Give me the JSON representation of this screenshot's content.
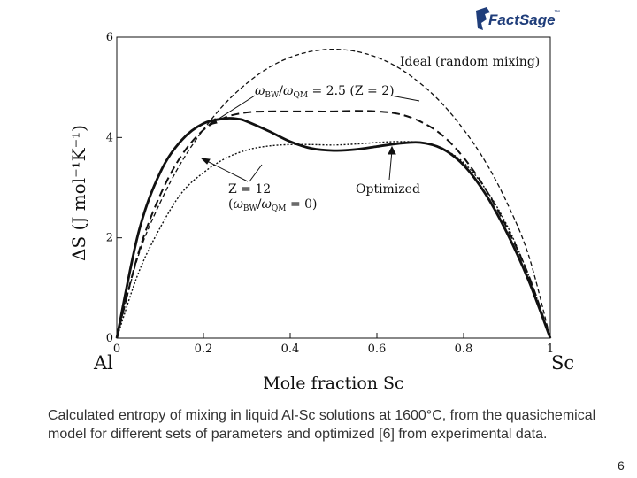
{
  "logo": {
    "text": "FactSage",
    "tm": "™",
    "color": "#1f3d7a"
  },
  "chart_data": {
    "type": "line",
    "ylabel": "ΔS (J mol⁻¹K⁻¹)",
    "xlabel": "Mole fraction Sc",
    "x_left_label": "Al",
    "x_right_label": "Sc",
    "xlim": [
      0,
      1
    ],
    "ylim": [
      0,
      6
    ],
    "x_ticks": [
      0,
      0.2,
      0.4,
      0.6,
      0.8,
      1
    ],
    "x_tick_labels": [
      "0",
      "0.2",
      "0.4",
      "0.6",
      "0.8",
      "1"
    ],
    "y_ticks": [
      0,
      2,
      4,
      6
    ],
    "y_tick_labels": [
      "0",
      "2",
      "4",
      "6"
    ],
    "series": [
      {
        "name": "Ideal (random mixing)",
        "style": "dashed-fine",
        "x": [
          0,
          0.05,
          0.1,
          0.15,
          0.2,
          0.25,
          0.3,
          0.35,
          0.4,
          0.45,
          0.5,
          0.55,
          0.6,
          0.65,
          0.7,
          0.75,
          0.8,
          0.85,
          0.9,
          0.95,
          1
        ],
        "y": [
          0,
          1.65,
          2.7,
          3.52,
          4.16,
          4.68,
          5.08,
          5.39,
          5.6,
          5.72,
          5.76,
          5.72,
          5.6,
          5.39,
          5.08,
          4.68,
          4.16,
          3.52,
          2.7,
          1.65,
          0
        ]
      },
      {
        "name": "ωBW/ωQM = 2.5 (Z = 2)",
        "style": "dashed",
        "x": [
          0,
          0.05,
          0.1,
          0.15,
          0.2,
          0.25,
          0.3,
          0.35,
          0.4,
          0.45,
          0.5,
          0.55,
          0.6,
          0.65,
          0.7,
          0.75,
          0.8,
          0.85,
          0.9,
          0.95,
          1
        ],
        "y": [
          0,
          1.7,
          2.85,
          3.65,
          4.15,
          4.4,
          4.5,
          4.52,
          4.52,
          4.52,
          4.52,
          4.53,
          4.52,
          4.47,
          4.32,
          4.05,
          3.6,
          2.98,
          2.2,
          1.25,
          0
        ]
      },
      {
        "name": "Z = 12 (ωBW/ωQM = 0)",
        "style": "dotted",
        "x": [
          0,
          0.05,
          0.1,
          0.15,
          0.2,
          0.25,
          0.3,
          0.35,
          0.4,
          0.45,
          0.5,
          0.55,
          0.6,
          0.65,
          0.7,
          0.75,
          0.8,
          0.85,
          0.9,
          0.95,
          1
        ],
        "y": [
          0,
          1.3,
          2.2,
          2.9,
          3.3,
          3.58,
          3.75,
          3.83,
          3.86,
          3.86,
          3.85,
          3.87,
          3.9,
          3.92,
          3.9,
          3.78,
          3.5,
          2.98,
          2.25,
          1.25,
          0
        ]
      },
      {
        "name": "Optimized",
        "style": "solid-thick",
        "x": [
          0,
          0.05,
          0.1,
          0.15,
          0.2,
          0.25,
          0.28,
          0.3,
          0.35,
          0.4,
          0.45,
          0.5,
          0.55,
          0.6,
          0.65,
          0.7,
          0.75,
          0.8,
          0.85,
          0.9,
          0.95,
          1
        ],
        "y": [
          0,
          2.1,
          3.3,
          3.95,
          4.28,
          4.38,
          4.37,
          4.32,
          4.13,
          3.92,
          3.78,
          3.74,
          3.76,
          3.82,
          3.88,
          3.9,
          3.78,
          3.45,
          2.88,
          2.1,
          1.15,
          0
        ]
      }
    ],
    "annotations": {
      "ideal": "Ideal (random mixing)",
      "omega_prefix": "ω",
      "omega_bw_sub": "BW",
      "omega_qm_sub": "QM",
      "omega_ratio_value": " = 2.5 (Z = 2)",
      "z12": "Z = 12",
      "z12_paren_open": "(",
      "z12_paren_close": " = 0)",
      "optimized": "Optimized"
    }
  },
  "caption": "Calculated entropy of mixing in liquid Al-Sc solutions at 1600°C, from the quasichemical model for different sets of parameters and optimized [6] from experimental data.",
  "page_number": "6"
}
